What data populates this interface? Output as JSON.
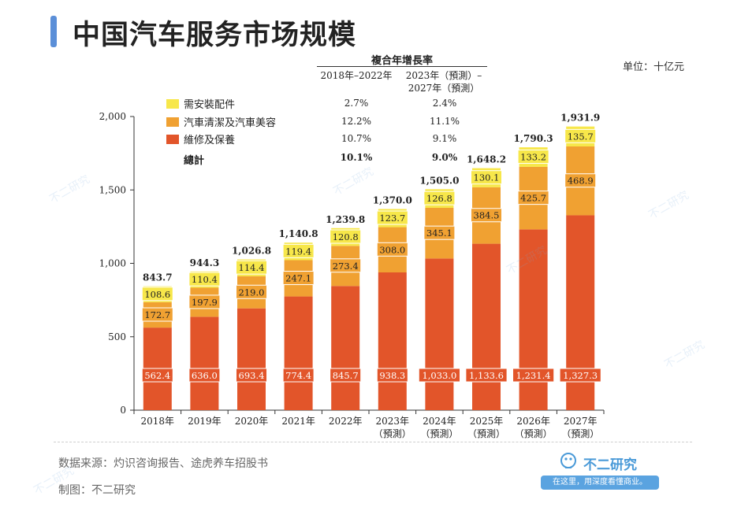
{
  "header": {
    "title": "中国汽车服务市场规模",
    "unit": "单位：十亿元"
  },
  "cagr": {
    "title": "複合年增長率",
    "col1": "2018年–2022年",
    "col2_line1": "2023年（預測）–",
    "col2_line2": "2027年（預測）"
  },
  "legend": [
    {
      "label": "需安裝配件",
      "color": "#f7e74a",
      "cagr1": "2.7%",
      "cagr2": "2.4%"
    },
    {
      "label": "汽車清潔及汽車美容",
      "color": "#f0a132",
      "cagr1": "12.2%",
      "cagr2": "11.1%"
    },
    {
      "label": "維修及保養",
      "color": "#e2552a",
      "cagr1": "10.7%",
      "cagr2": "9.1%"
    }
  ],
  "total_row": {
    "label": "總計",
    "cagr1": "10.1%",
    "cagr2": "9.0%"
  },
  "chart_data": {
    "type": "bar",
    "stacked": true,
    "categories": [
      "2018年",
      "2019年",
      "2020年",
      "2021年",
      "2022年",
      "2023年",
      "2024年",
      "2025年",
      "2026年",
      "2027年"
    ],
    "category_sublabels": [
      "",
      "",
      "",
      "",
      "",
      "（預測）",
      "（預測）",
      "（預測）",
      "（預測）",
      "（預測）"
    ],
    "series": [
      {
        "name": "維修及保養",
        "color": "#e2552a",
        "labels": [
          "562.4",
          "636.0",
          "693.4",
          "774.4",
          "845.7",
          "938.3",
          "1,033.0",
          "1,133.6",
          "1,231.4",
          "1,327.3"
        ],
        "values": [
          562.4,
          636.0,
          693.4,
          774.4,
          845.7,
          938.3,
          1033.0,
          1133.6,
          1231.4,
          1327.3
        ]
      },
      {
        "name": "汽車清潔及汽車美容",
        "color": "#f0a132",
        "labels": [
          "172.7",
          "197.9",
          "219.0",
          "247.1",
          "273.4",
          "308.0",
          "345.1",
          "384.5",
          "425.7",
          "468.9"
        ],
        "values": [
          172.7,
          197.9,
          219.0,
          247.1,
          273.4,
          308.0,
          345.1,
          384.5,
          425.7,
          468.9
        ]
      },
      {
        "name": "需安裝配件",
        "color": "#f7e74a",
        "labels": [
          "108.6",
          "110.4",
          "114.4",
          "119.4",
          "120.8",
          "123.7",
          "126.8",
          "130.1",
          "133.2",
          "135.7"
        ],
        "values": [
          108.6,
          110.4,
          114.4,
          119.4,
          120.8,
          123.7,
          126.8,
          130.1,
          133.2,
          135.7
        ]
      }
    ],
    "totals": [
      843.7,
      944.3,
      1026.8,
      1140.8,
      1239.8,
      1370.0,
      1505.0,
      1648.2,
      1790.3,
      1931.9
    ],
    "total_labels": [
      "843.7",
      "944.3",
      "1,026.8",
      "1,140.8",
      "1,239.8",
      "1,370.0",
      "1,505.0",
      "1,648.2",
      "1,790.3",
      "1,931.9"
    ],
    "ylim": [
      0,
      2000
    ],
    "yticks": [
      0,
      500,
      1000,
      1500,
      2000
    ],
    "ytick_labels": [
      "0",
      "500",
      "1,000",
      "1,500",
      "2,000"
    ]
  },
  "footer": {
    "source": "数据来源：灼识咨询报告、途虎养车招股书",
    "maker": "制图：不二研究"
  },
  "brand": {
    "name": "不二研究",
    "tagline": "在这里，用深度看懂商业。"
  },
  "watermark": "不二研究"
}
